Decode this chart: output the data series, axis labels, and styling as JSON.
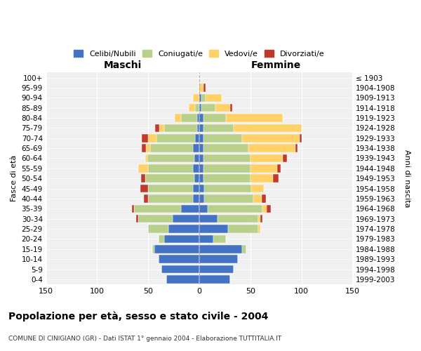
{
  "age_groups": [
    "0-4",
    "5-9",
    "10-14",
    "15-19",
    "20-24",
    "25-29",
    "30-34",
    "35-39",
    "40-44",
    "45-49",
    "50-54",
    "55-59",
    "60-64",
    "65-69",
    "70-74",
    "75-79",
    "80-84",
    "85-89",
    "90-94",
    "95-99",
    "100+"
  ],
  "birth_years": [
    "1999-2003",
    "1994-1998",
    "1989-1993",
    "1984-1988",
    "1979-1983",
    "1974-1978",
    "1969-1973",
    "1964-1968",
    "1959-1963",
    "1954-1958",
    "1949-1953",
    "1944-1948",
    "1939-1943",
    "1934-1938",
    "1929-1933",
    "1924-1928",
    "1919-1923",
    "1914-1918",
    "1909-1913",
    "1904-1908",
    "≤ 1903"
  ],
  "male": {
    "celibi": [
      32,
      37,
      40,
      44,
      34,
      30,
      26,
      18,
      6,
      6,
      5,
      6,
      5,
      6,
      4,
      2,
      2,
      0,
      0,
      0,
      0
    ],
    "coniugati": [
      0,
      0,
      0,
      2,
      6,
      20,
      34,
      46,
      44,
      44,
      48,
      44,
      46,
      42,
      38,
      32,
      16,
      4,
      0,
      0,
      0
    ],
    "vedovi": [
      0,
      0,
      0,
      0,
      0,
      0,
      0,
      0,
      0,
      0,
      0,
      10,
      2,
      4,
      8,
      5,
      6,
      6,
      6,
      1,
      0
    ],
    "divorziati": [
      0,
      0,
      0,
      0,
      0,
      0,
      2,
      2,
      4,
      8,
      4,
      0,
      0,
      4,
      6,
      4,
      0,
      0,
      0,
      0,
      0
    ]
  },
  "female": {
    "nubili": [
      30,
      34,
      38,
      42,
      14,
      28,
      18,
      8,
      5,
      5,
      4,
      4,
      4,
      4,
      4,
      4,
      4,
      2,
      2,
      0,
      0
    ],
    "coniugate": [
      0,
      0,
      0,
      4,
      12,
      30,
      40,
      54,
      48,
      46,
      46,
      46,
      46,
      44,
      38,
      30,
      22,
      14,
      4,
      0,
      0
    ],
    "vedove": [
      0,
      0,
      0,
      0,
      0,
      2,
      2,
      4,
      8,
      12,
      22,
      26,
      32,
      46,
      56,
      66,
      56,
      14,
      16,
      4,
      0
    ],
    "divorziate": [
      0,
      0,
      0,
      0,
      0,
      0,
      2,
      4,
      4,
      0,
      6,
      4,
      4,
      2,
      2,
      0,
      0,
      2,
      0,
      2,
      0
    ]
  },
  "colors": {
    "celibi": "#4472C4",
    "coniugati": "#B8D08B",
    "vedovi": "#FFD166",
    "divorziati": "#C0392B"
  },
  "title": "Popolazione per età, sesso e stato civile - 2004",
  "subtitle": "COMUNE DI CINIGIANO (GR) - Dati ISTAT 1° gennaio 2004 - Elaborazione TUTTITALIA.IT",
  "xlabel_left": "Maschi",
  "xlabel_right": "Femmine",
  "ylabel_left": "Fasce di età",
  "ylabel_right": "Anni di nascita",
  "xlim": 150,
  "background_color": "#ffffff",
  "grid_color": "#cccccc"
}
